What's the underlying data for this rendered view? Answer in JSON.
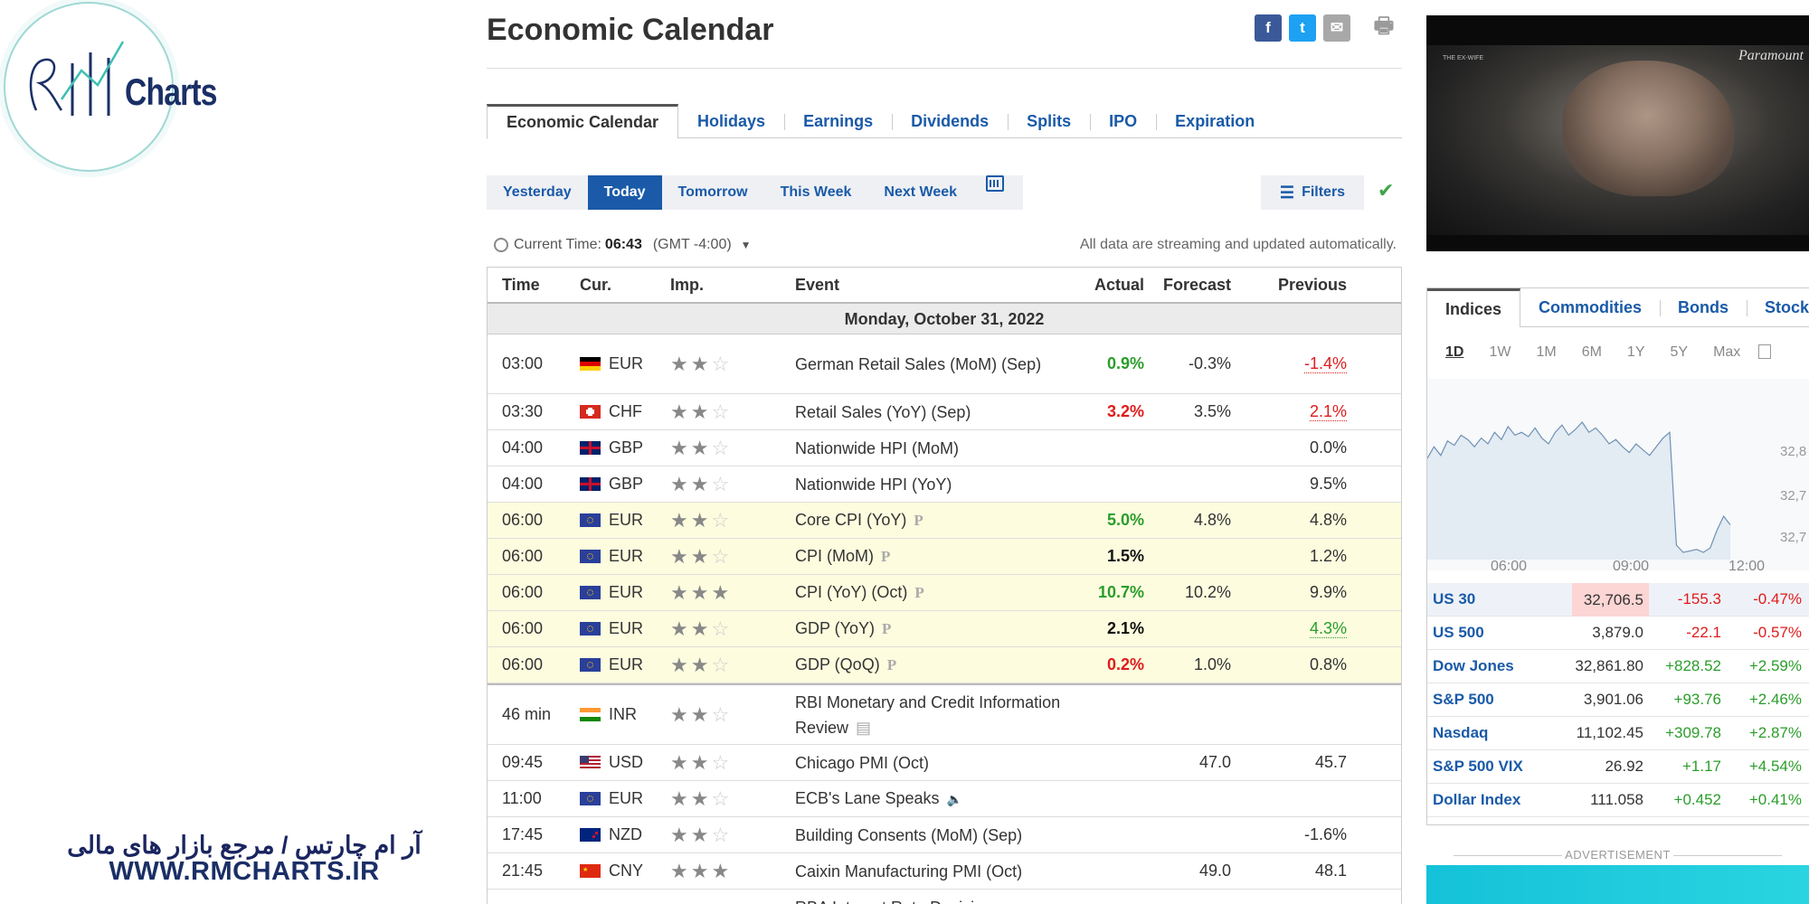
{
  "brand": {
    "logo_text": "Charts",
    "footer_fa": "آر ام چارتس / مرجع بازار های مالی",
    "footer_url": "WWW.RMCHARTS.IR"
  },
  "header": {
    "title": "Economic Calendar",
    "share_icons": [
      "facebook-icon",
      "twitter-icon",
      "mail-icon",
      "print-icon"
    ],
    "share_glyphs": {
      "facebook": "f",
      "twitter": "t",
      "mail": "✉",
      "print": "🖶"
    }
  },
  "tabs": [
    {
      "label": "Economic Calendar",
      "active": true
    },
    {
      "label": "Holidays"
    },
    {
      "label": "Earnings"
    },
    {
      "label": "Dividends"
    },
    {
      "label": "Splits"
    },
    {
      "label": "IPO"
    },
    {
      "label": "Expiration"
    }
  ],
  "date_buttons": [
    {
      "label": "Yesterday"
    },
    {
      "label": "Today",
      "active": true
    },
    {
      "label": "Tomorrow"
    },
    {
      "label": "This Week"
    },
    {
      "label": "Next Week"
    }
  ],
  "filters_label": "Filters",
  "current_time": {
    "prefix": "Current Time:",
    "time": "06:43",
    "tz": "(GMT -4:00)"
  },
  "streaming_note": "All data are streaming and updated automatically.",
  "table": {
    "headers": {
      "time": "Time",
      "cur": "Cur.",
      "imp": "Imp.",
      "event": "Event",
      "actual": "Actual",
      "forecast": "Forecast",
      "previous": "Previous"
    },
    "day_label": "Monday, October 31, 2022",
    "rows": [
      {
        "time": "03:00",
        "cur": "EUR",
        "flag": "de",
        "imp": 2,
        "event": "German Retail Sales (MoM) (Sep)",
        "actual": "0.9%",
        "actual_color": "green",
        "forecast": "-0.3%",
        "previous": "-1.4%",
        "previous_style": "red",
        "h": 66
      },
      {
        "time": "03:30",
        "cur": "CHF",
        "flag": "ch",
        "imp": 2,
        "event": "Retail Sales (YoY) (Sep)",
        "actual": "3.2%",
        "actual_color": "red",
        "forecast": "3.5%",
        "previous": "2.1%",
        "previous_style": "red",
        "h": 40
      },
      {
        "time": "04:00",
        "cur": "GBP",
        "flag": "gb",
        "imp": 2,
        "event": "Nationwide HPI (MoM)",
        "actual": "",
        "forecast": "",
        "previous": "0.0%",
        "h": 40
      },
      {
        "time": "04:00",
        "cur": "GBP",
        "flag": "gb",
        "imp": 2,
        "event": "Nationwide HPI (YoY)",
        "actual": "",
        "forecast": "",
        "previous": "9.5%",
        "h": 40
      },
      {
        "time": "06:00",
        "cur": "EUR",
        "flag": "eu",
        "imp": 2,
        "event": "Core CPI (YoY)",
        "prelim": "P",
        "actual": "5.0%",
        "actual_color": "green",
        "forecast": "4.8%",
        "previous": "4.8%",
        "hl": true,
        "h": 40
      },
      {
        "time": "06:00",
        "cur": "EUR",
        "flag": "eu",
        "imp": 2,
        "event": "CPI (MoM)",
        "prelim": "P",
        "actual": "1.5%",
        "actual_color": "black",
        "forecast": "",
        "previous": "1.2%",
        "hl": true,
        "h": 40
      },
      {
        "time": "06:00",
        "cur": "EUR",
        "flag": "eu",
        "imp": 3,
        "event": "CPI (YoY) (Oct)",
        "prelim": "P",
        "actual": "10.7%",
        "actual_color": "green",
        "forecast": "10.2%",
        "previous": "9.9%",
        "hl": true,
        "h": 40
      },
      {
        "time": "06:00",
        "cur": "EUR",
        "flag": "eu",
        "imp": 2,
        "event": "GDP (YoY)",
        "prelim": "P",
        "actual": "2.1%",
        "actual_color": "black",
        "forecast": "",
        "previous": "4.3%",
        "previous_style": "green",
        "hl": true,
        "h": 40
      },
      {
        "time": "06:00",
        "cur": "EUR",
        "flag": "eu",
        "imp": 2,
        "event": "GDP (QoQ)",
        "prelim": "P",
        "actual": "0.2%",
        "actual_color": "red",
        "forecast": "1.0%",
        "previous": "0.8%",
        "hl": true,
        "h": 40
      },
      {
        "time": "46 min",
        "cur": "INR",
        "flag": "in",
        "imp": 2,
        "event": "RBI Monetary and Credit Information Review",
        "doc_icon": true,
        "actual": "",
        "forecast": "",
        "previous": "",
        "h": 68,
        "sep_top": true
      },
      {
        "time": "09:45",
        "cur": "USD",
        "flag": "us",
        "imp": 2,
        "event": "Chicago PMI (Oct)",
        "actual": "",
        "forecast": "47.0",
        "previous": "45.7",
        "h": 40
      },
      {
        "time": "11:00",
        "cur": "EUR",
        "flag": "eu",
        "imp": 2,
        "event": "ECB's Lane Speaks",
        "speaker_icon": true,
        "actual": "",
        "forecast": "",
        "previous": "",
        "h": 40
      },
      {
        "time": "17:45",
        "cur": "NZD",
        "flag": "nz",
        "imp": 2,
        "event": "Building Consents (MoM) (Sep)",
        "actual": "",
        "forecast": "",
        "previous": "-1.6%",
        "h": 40
      },
      {
        "time": "21:45",
        "cur": "CNY",
        "flag": "cn",
        "imp": 3,
        "event": "Caixin Manufacturing PMI (Oct)",
        "actual": "",
        "forecast": "49.0",
        "previous": "48.1",
        "h": 40
      },
      {
        "time": "",
        "cur": "",
        "flag": "",
        "imp": 0,
        "event": "RBA Interest Rate Decision",
        "actual": "",
        "forecast": "",
        "previous": "",
        "h": 40
      }
    ]
  },
  "video": {
    "tag": "THE EX-WIFE",
    "brand": "Paramount"
  },
  "markets": {
    "tabs": [
      "Indices",
      "Commodities",
      "Bonds",
      "Stock"
    ],
    "periods": [
      "1D",
      "1W",
      "1M",
      "6M",
      "1Y",
      "5Y",
      "Max"
    ],
    "active_period": "1D",
    "chart_data": {
      "type": "area",
      "x_ticks": [
        "06:00",
        "09:00",
        "12:00"
      ],
      "y_ticks": [
        "32,8",
        "32,7",
        "32,7"
      ],
      "values": [
        0.7,
        0.78,
        0.72,
        0.82,
        0.79,
        0.86,
        0.83,
        0.78,
        0.84,
        0.8,
        0.88,
        0.83,
        0.92,
        0.86,
        0.88,
        0.85,
        0.91,
        0.84,
        0.8,
        0.88,
        0.93,
        0.86,
        0.9,
        0.95,
        0.88,
        0.91,
        0.86,
        0.8,
        0.83,
        0.78,
        0.74,
        0.8,
        0.76,
        0.72,
        0.78,
        0.84,
        0.88,
        0.1,
        0.05,
        0.06,
        0.07,
        0.05,
        0.08,
        0.2,
        0.3,
        0.24
      ]
    },
    "indices": [
      {
        "name": "US 30",
        "last": "32,706.5",
        "chg": "-155.3",
        "pct": "-0.47%",
        "dir": "neg",
        "hl": true
      },
      {
        "name": "US 500",
        "last": "3,879.0",
        "chg": "-22.1",
        "pct": "-0.57%",
        "dir": "neg"
      },
      {
        "name": "Dow Jones",
        "last": "32,861.80",
        "chg": "+828.52",
        "pct": "+2.59%",
        "dir": "pos"
      },
      {
        "name": "S&P 500",
        "last": "3,901.06",
        "chg": "+93.76",
        "pct": "+2.46%",
        "dir": "pos"
      },
      {
        "name": "Nasdaq",
        "last": "11,102.45",
        "chg": "+309.78",
        "pct": "+2.87%",
        "dir": "pos"
      },
      {
        "name": "S&P 500 VIX",
        "last": "26.92",
        "chg": "+1.17",
        "pct": "+4.54%",
        "dir": "pos"
      },
      {
        "name": "Dollar Index",
        "last": "111.058",
        "chg": "+0.452",
        "pct": "+0.41%",
        "dir": "pos"
      }
    ]
  },
  "ad_label": "ADVERTISEMENT"
}
